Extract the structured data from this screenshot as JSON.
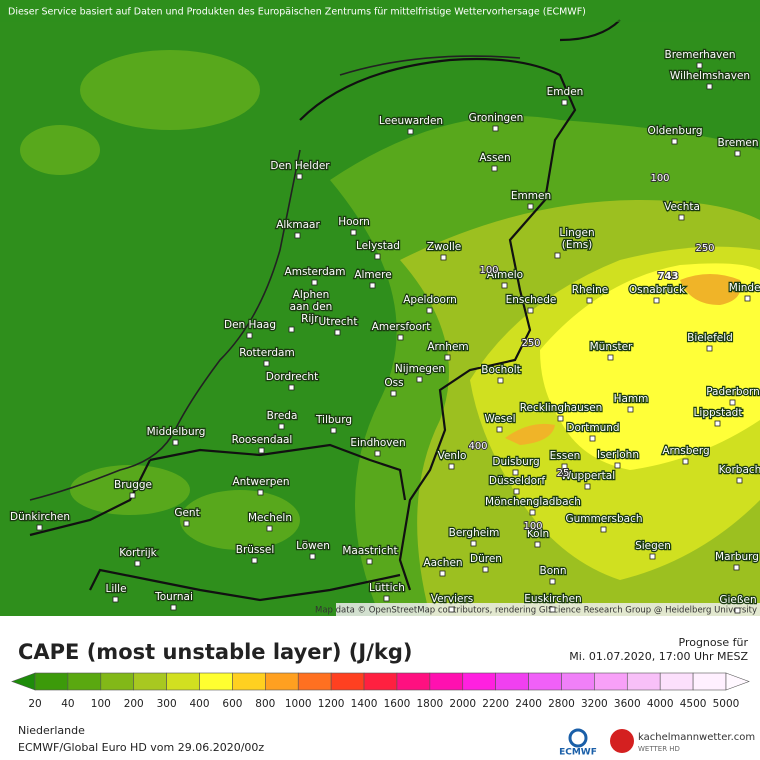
{
  "header": {
    "notice": "Dieser Service basiert auf Daten und Produkten des Europäischen Zentrums für mittelfristige Wettervorhersage (ECMWF)"
  },
  "map": {
    "cities": [
      "Bremerhaven",
      "Wilhelmshaven",
      "Emden",
      "Leeuwarden",
      "Groningen",
      "Oldenburg",
      "Bremen",
      "Den Helder",
      "Assen",
      "Emmen",
      "Vechta",
      "Alkmaar",
      "Hoorn",
      [
        "Lingen",
        "(Ems)"
      ],
      "Lelystad",
      "Zwolle",
      "Almelo",
      "Amsterdam",
      "Almere",
      "Rheine",
      "Osnabrück",
      "Minden",
      [
        "Alphen",
        "aan den",
        "Rijn"
      ],
      "Apeldoorn",
      "Enschede",
      "Den Haag",
      "Utrecht",
      "Amersfoort",
      "Bielefeld",
      "Münster",
      "Arnhem",
      "Rotterdam",
      "Nijmegen",
      "Bocholt",
      "Dordrecht",
      "Oss",
      "Hamm",
      "Recklinghausen",
      "Wesel",
      "Paderborn",
      "Lippstadt",
      "Breda",
      "Tilburg",
      "Middelburg",
      "Dortmund",
      "Roosendaal",
      "Eindhoven",
      "Venlo",
      "Essen",
      "Iserlohn",
      "Arnsberg",
      "Duisburg",
      "Wuppertal",
      "Korbach",
      "Brugge",
      "Antwerpen",
      "Düsseldorf",
      "Mönchengladbach",
      "Dünkirchen",
      "Gent",
      "Mecheln",
      "Gummersbach",
      "Bergheim",
      "Köln",
      "Kortrijk",
      "Brüssel",
      "Löwen",
      "Maastricht",
      "Düren",
      "Siegen",
      "Marburg",
      "Aachen",
      "Bonn",
      "Lille",
      "Tournai",
      "Lüttich",
      "Verviers",
      "Euskirchen",
      "Gießen"
    ],
    "contour_labels": [
      "100",
      "250",
      "743",
      "100",
      "250",
      "400",
      "25",
      "100"
    ],
    "attribution": "Map data © OpenStreetMap contributors, rendering GIScience Research Group @ Heidelberg University"
  },
  "title": "CAPE (most unstable layer) (J/kg)",
  "forecast": {
    "label": "Prognose für",
    "time": "Mi. 01.07.2020, 17:00 Uhr MESZ"
  },
  "legend": {
    "levels": [
      20,
      40,
      100,
      200,
      300,
      400,
      600,
      800,
      1000,
      1200,
      1400,
      1600,
      1800,
      2000,
      2200,
      2400,
      2800,
      3200,
      3600,
      4000,
      4500,
      5000
    ],
    "colors": [
      "#1e8c0a",
      "#3c9a0a",
      "#5aa810",
      "#82b818",
      "#a8c820",
      "#d2e020",
      "#ffff30",
      "#ffd020",
      "#ffa020",
      "#ff7020",
      "#ff4020",
      "#ff2040",
      "#ff1080",
      "#ff10b0",
      "#ff20e0",
      "#f040f0",
      "#f060f8",
      "#f080f8",
      "#f8a0f8",
      "#f8c0f8",
      "#fce0fc",
      "#fff0ff",
      "#fff8ff"
    ]
  },
  "footer": {
    "region": "Niederlande",
    "model": "ECMWF/Global Euro HD vom  29.06.2020/00z"
  },
  "logos": {
    "ecmwf": "ECMWF",
    "site": "kachelmannwetter.com",
    "sub": "WETTER HD"
  }
}
